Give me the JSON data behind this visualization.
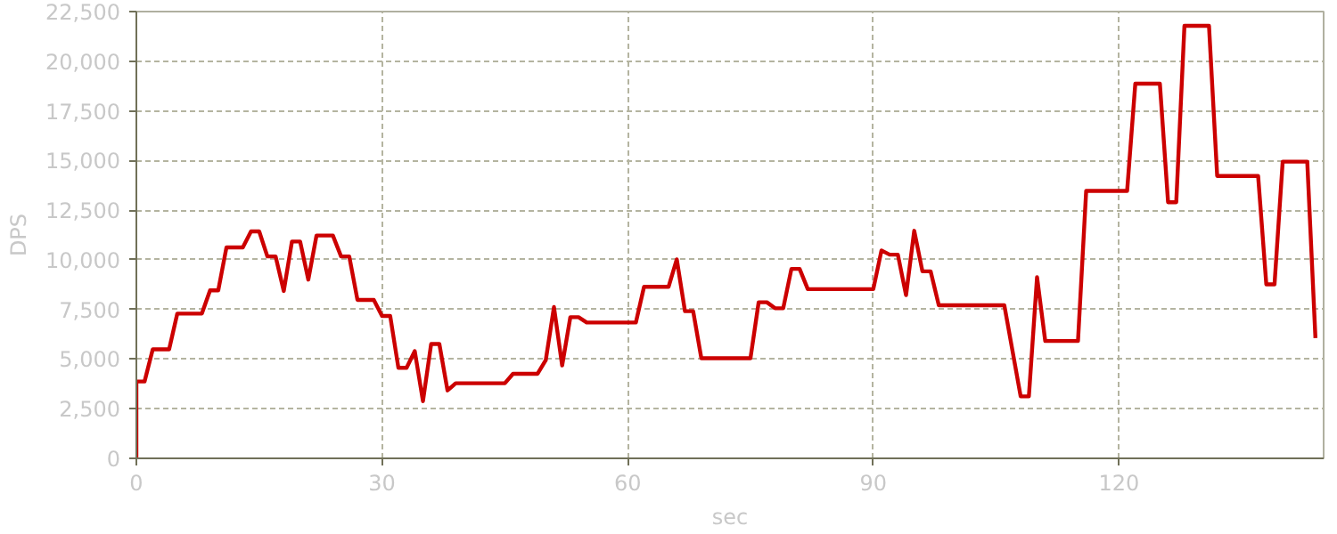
{
  "chart_data": {
    "type": "line",
    "xlabel": "sec",
    "ylabel": "DPS",
    "xlim": [
      0,
      145
    ],
    "xticks": [
      0,
      30,
      60,
      90,
      120
    ],
    "ylim": [
      0,
      22500
    ],
    "yticks": [
      0,
      {
        "value": 2500,
        "label": "2,500"
      },
      {
        "value": 5000,
        "label": "5,000"
      },
      {
        "value": 7500,
        "label": "7,500"
      },
      {
        "value": 10000,
        "label": "10,000"
      },
      {
        "value": 12500,
        "label": "12,500"
      },
      {
        "value": 15000,
        "label": "15,000"
      },
      {
        "value": 17500,
        "label": "17,500"
      },
      {
        "value": 20000,
        "label": "20,000"
      },
      {
        "value": 22500,
        "label": "22,500"
      }
    ],
    "grid": true,
    "line_style": "solid",
    "series": [
      {
        "color": "#cc0000",
        "x": [
          0,
          0,
          1,
          2,
          4,
          5,
          8,
          9,
          10,
          11,
          13,
          14,
          15,
          16,
          17,
          18,
          19,
          20,
          21,
          22,
          24,
          25,
          26,
          27,
          29,
          30,
          31,
          32,
          33,
          34,
          35,
          36,
          37,
          38,
          39,
          45,
          46,
          49,
          50,
          51,
          52,
          53,
          54,
          55,
          61,
          62,
          65,
          66,
          67,
          68,
          69,
          75,
          76,
          77,
          78,
          79,
          80,
          81,
          82,
          90,
          91,
          92,
          93,
          94,
          95,
          96,
          97,
          98,
          106,
          108,
          109,
          110,
          111,
          115,
          116,
          121,
          122,
          125,
          126,
          127,
          128,
          131,
          132,
          137,
          138,
          139,
          140,
          143,
          144
        ],
        "values": [
          0,
          3870,
          3870,
          5490,
          5490,
          7290,
          7290,
          8460,
          8460,
          10620,
          10620,
          11430,
          11430,
          10170,
          10170,
          8430,
          10920,
          10920,
          9000,
          11220,
          11220,
          10170,
          10170,
          7980,
          7980,
          7170,
          7170,
          4560,
          4560,
          5400,
          2880,
          5760,
          5760,
          3420,
          3780,
          3780,
          4260,
          4260,
          4950,
          7620,
          4680,
          7110,
          7110,
          6840,
          6840,
          8640,
          8640,
          10020,
          7410,
          7410,
          5040,
          5040,
          7860,
          7860,
          7560,
          7560,
          9540,
          9540,
          8520,
          8520,
          10470,
          10260,
          10260,
          8220,
          11460,
          9420,
          9420,
          7710,
          7710,
          3120,
          3120,
          9120,
          5910,
          5910,
          13470,
          13470,
          18870,
          18870,
          12900,
          12900,
          21780,
          21780,
          14220,
          14220,
          8760,
          8760,
          14940,
          14940,
          6060
        ]
      }
    ]
  }
}
